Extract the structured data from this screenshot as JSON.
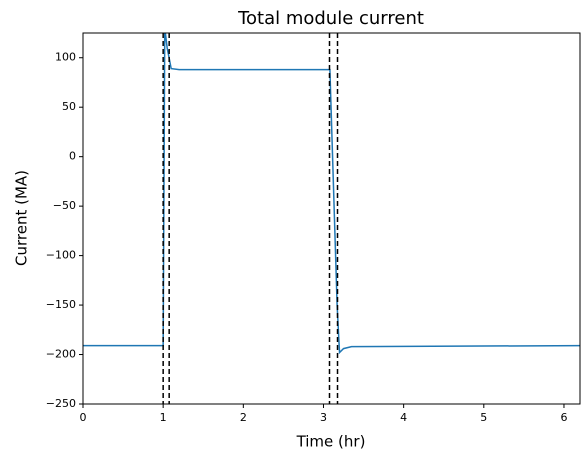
{
  "chart_data": {
    "type": "line",
    "title": "Total module current",
    "xlabel": "Time (hr)",
    "ylabel": "Current (MA)",
    "x": [
      0,
      1.0,
      1.02,
      1.05,
      1.1,
      1.2,
      3.08,
      3.17,
      3.2,
      3.25,
      3.35,
      6.2
    ],
    "series": [
      {
        "color": "#1f77b4",
        "values": [
          -191,
          -191,
          130,
          110,
          89,
          88,
          88,
          -150,
          -198,
          -194,
          -192,
          -191
        ]
      }
    ],
    "vlines": [
      1.0,
      1.075,
      3.075,
      3.175
    ],
    "vline_color": "#000000",
    "xlim": [
      0,
      6.2
    ],
    "xticks": [
      0,
      1,
      2,
      3,
      4,
      5,
      6
    ],
    "ylim": [
      -250,
      125
    ],
    "yticks": [
      {
        "value": -250,
        "label": "−250"
      },
      {
        "value": -200,
        "label": "−200"
      },
      {
        "value": -150,
        "label": "−150"
      },
      {
        "value": -100,
        "label": "−100"
      },
      {
        "value": -50,
        "label": "−50"
      },
      0,
      50,
      100
    ]
  }
}
